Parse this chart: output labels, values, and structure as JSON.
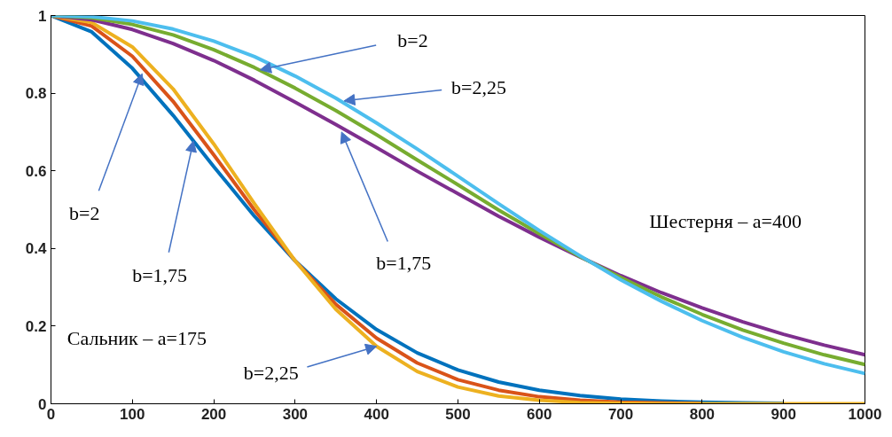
{
  "chart_data": {
    "type": "line",
    "x": [
      0,
      50,
      100,
      150,
      200,
      250,
      300,
      350,
      400,
      450,
      500,
      550,
      600,
      650,
      700,
      750,
      800,
      850,
      900,
      950,
      1000
    ],
    "xlim": [
      0,
      1000
    ],
    "ylim": [
      0,
      1
    ],
    "xticks": [
      0,
      100,
      200,
      300,
      400,
      500,
      600,
      700,
      800,
      900,
      1000
    ],
    "yticks": [
      0,
      0.2,
      0.4,
      0.6,
      0.8,
      1
    ],
    "series": [
      {
        "color": "#0072bd",
        "values": [
          1,
          0.958,
          0.864,
          0.743,
          0.611,
          0.483,
          0.368,
          0.27,
          0.191,
          0.131,
          0.087,
          0.056,
          0.035,
          0.021,
          0.012,
          0.007,
          0.004,
          0.002,
          0.001,
          null,
          null
        ]
      },
      {
        "color": "#d95319",
        "values": [
          1,
          0.973,
          0.895,
          0.779,
          0.641,
          0.499,
          0.368,
          0.256,
          0.169,
          0.105,
          0.062,
          0.035,
          0.018,
          0.009,
          0.004,
          0.002,
          0.001,
          null,
          null,
          null,
          null
        ]
      },
      {
        "color": "#edb120",
        "values": [
          1,
          0.982,
          0.919,
          0.811,
          0.669,
          0.515,
          0.368,
          0.243,
          0.148,
          0.083,
          0.043,
          0.02,
          0.009,
          0.003,
          0.001,
          0,
          0,
          0,
          0,
          0,
          0
        ]
      },
      {
        "color": "#7e2f8e",
        "values": [
          1,
          0.989,
          0.964,
          0.928,
          0.884,
          0.833,
          0.777,
          0.719,
          0.66,
          0.599,
          0.541,
          0.483,
          0.429,
          0.378,
          0.33,
          0.286,
          0.247,
          0.211,
          0.179,
          0.151,
          0.126
        ]
      },
      {
        "color": "#77ac30",
        "values": [
          1,
          0.994,
          0.977,
          0.95,
          0.912,
          0.866,
          0.813,
          0.755,
          0.693,
          0.628,
          0.564,
          0.499,
          0.438,
          0.379,
          0.325,
          0.275,
          0.23,
          0.19,
          0.156,
          0.126,
          0.101
        ]
      },
      {
        "color": "#4dbeee",
        "values": [
          1,
          0.997,
          0.986,
          0.965,
          0.934,
          0.894,
          0.844,
          0.787,
          0.723,
          0.656,
          0.586,
          0.515,
          0.446,
          0.381,
          0.319,
          0.264,
          0.214,
          0.171,
          0.134,
          0.103,
          0.078
        ]
      }
    ],
    "annotations": [
      {
        "text": "b=2",
        "x": 257,
        "y": 0.86
      },
      {
        "text": "b=2,25",
        "x": 360,
        "y": 0.78
      },
      {
        "text": "b=2",
        "x": 112,
        "y": 0.85
      },
      {
        "text": "b=1,75",
        "x": 175,
        "y": 0.677
      },
      {
        "text": "b=1,75",
        "x": 357,
        "y": 0.7
      },
      {
        "text": "b=2,25",
        "x": 400,
        "y": 0.148
      },
      "Шестерня – a=400",
      "Сальник – a=175"
    ]
  }
}
